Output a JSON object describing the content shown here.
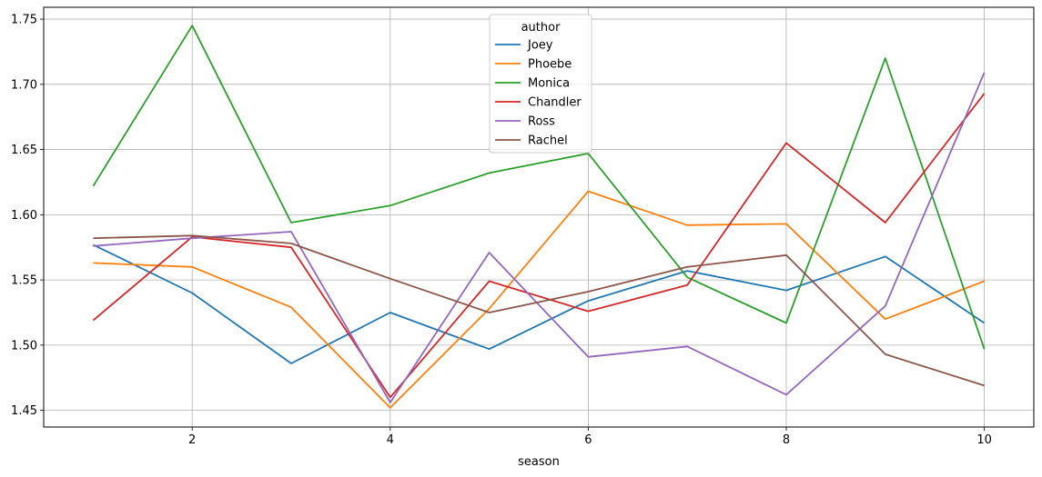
{
  "chart_data": {
    "type": "line",
    "xlabel": "season",
    "ylabel": "",
    "x": [
      1,
      2,
      3,
      4,
      5,
      6,
      7,
      8,
      9,
      10
    ],
    "xlim": [
      0.5,
      10.5
    ],
    "ylim": [
      1.4372,
      1.7591
    ],
    "x_ticks": [
      2,
      4,
      6,
      8,
      10
    ],
    "y_ticks": [
      1.45,
      1.5,
      1.55,
      1.6,
      1.65,
      1.7,
      1.75
    ],
    "y_tick_labels": [
      "1.45",
      "1.50",
      "1.55",
      "1.60",
      "1.65",
      "1.70",
      "1.75"
    ],
    "grid": true,
    "legend": {
      "title": "author",
      "placement": "top-center"
    },
    "series": [
      {
        "name": "Joey",
        "color": "#1f77b4",
        "values": [
          1.577,
          1.54,
          1.486,
          1.525,
          1.497,
          1.534,
          1.557,
          1.542,
          1.568,
          1.517
        ]
      },
      {
        "name": "Phoebe",
        "color": "#ff7f0e",
        "values": [
          1.563,
          1.56,
          1.529,
          1.452,
          1.528,
          1.618,
          1.592,
          1.593,
          1.52,
          1.549
        ]
      },
      {
        "name": "Monica",
        "color": "#2ca02c",
        "values": [
          1.622,
          1.745,
          1.594,
          1.607,
          1.632,
          1.647,
          1.552,
          1.517,
          1.72,
          1.497
        ]
      },
      {
        "name": "Chandler",
        "color": "#d62728",
        "values": [
          1.519,
          1.583,
          1.575,
          1.46,
          1.549,
          1.526,
          1.546,
          1.655,
          1.594,
          1.693
        ]
      },
      {
        "name": "Ross",
        "color": "#9467bd",
        "values": [
          1.576,
          1.582,
          1.587,
          1.456,
          1.571,
          1.491,
          1.499,
          1.462,
          1.53,
          1.709
        ]
      },
      {
        "name": "Rachel",
        "color": "#8c564b",
        "values": [
          1.582,
          1.584,
          1.578,
          1.551,
          1.525,
          1.541,
          1.56,
          1.569,
          1.493,
          1.469
        ]
      }
    ]
  }
}
